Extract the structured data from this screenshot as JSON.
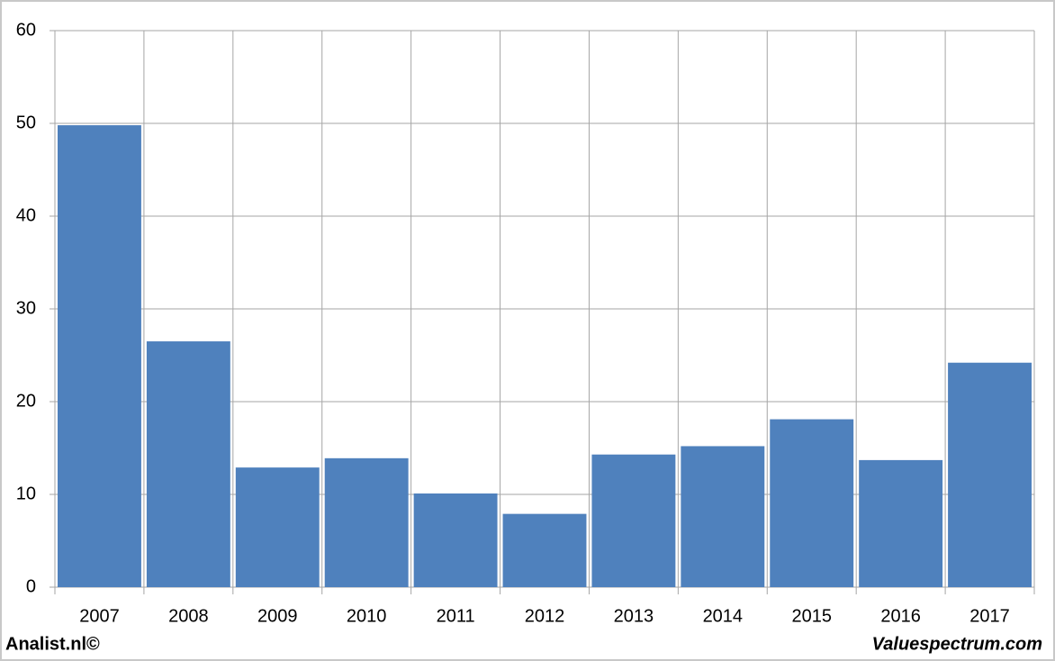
{
  "chart_data": {
    "type": "bar",
    "categories": [
      "2007",
      "2008",
      "2009",
      "2010",
      "2011",
      "2012",
      "2013",
      "2014",
      "2015",
      "2016",
      "2017"
    ],
    "values": [
      49.8,
      26.5,
      12.9,
      13.9,
      10.1,
      7.9,
      14.3,
      15.2,
      18.1,
      13.7,
      24.2
    ],
    "color": "#4f81bd",
    "ylim": [
      0,
      60
    ],
    "yticks": [
      0,
      10,
      20,
      30,
      40,
      50,
      60
    ],
    "grid": true
  },
  "footer": {
    "left": "Analist.nl©",
    "right": "Valuespectrum.com"
  }
}
